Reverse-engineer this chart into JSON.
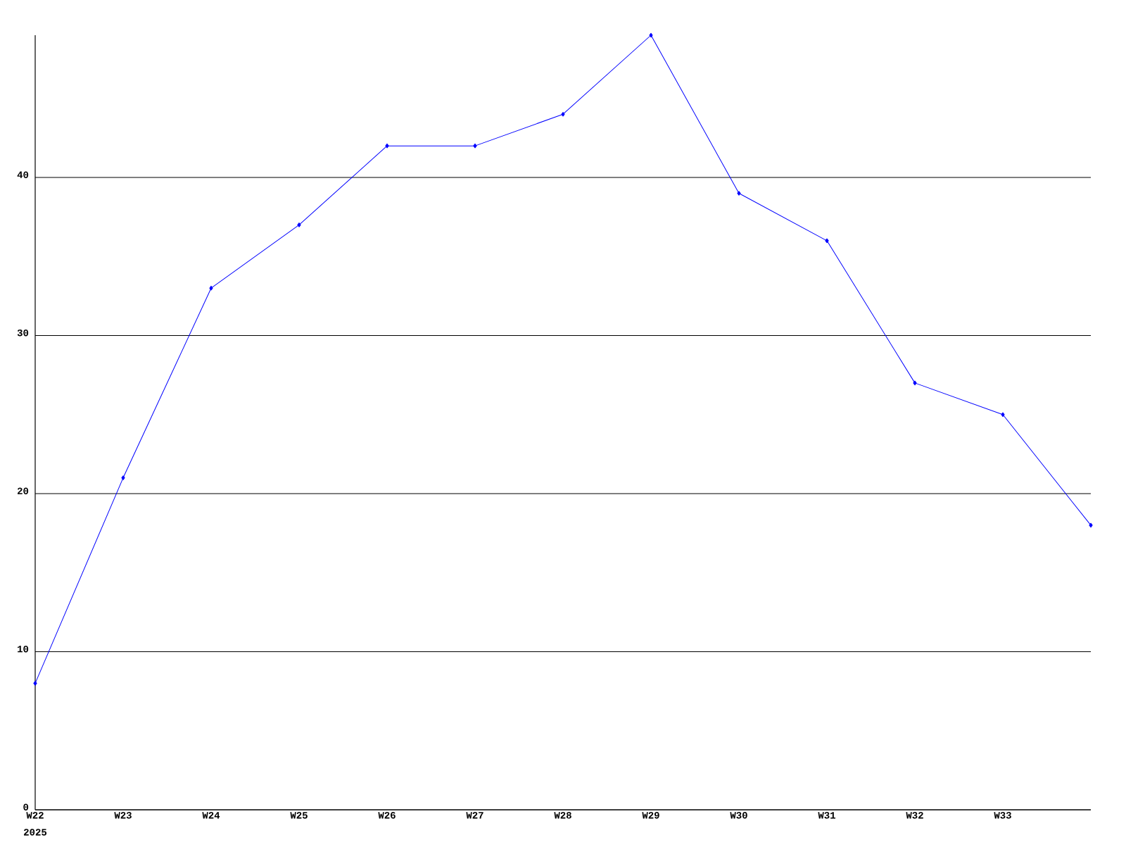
{
  "chart_data": {
    "type": "line",
    "categories": [
      "W22",
      "W23",
      "W24",
      "W25",
      "W26",
      "W27",
      "W28",
      "W29",
      "W30",
      "W31",
      "W32",
      "W33",
      null
    ],
    "values": [
      8,
      21,
      33,
      37,
      42,
      42,
      44,
      49,
      39,
      36,
      27,
      25,
      18
    ],
    "color": "#0000ff",
    "marker": "diamond",
    "ylim": [
      0,
      49
    ],
    "yticks": [
      0,
      10,
      20,
      30,
      40
    ],
    "grid": "y",
    "annotations": [
      "2025"
    ]
  }
}
